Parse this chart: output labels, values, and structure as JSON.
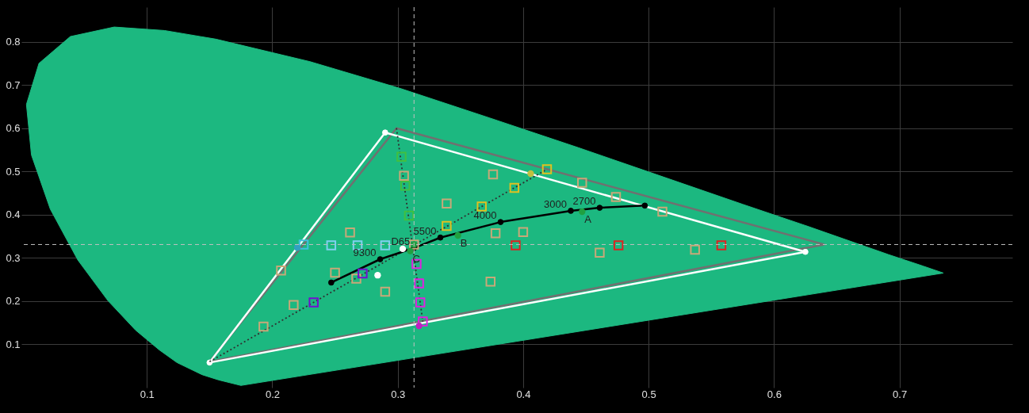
{
  "chart_data": {
    "type": "scatter",
    "xlim": [
      0,
      0.79
    ],
    "ylim": [
      0,
      0.88
    ],
    "xticks": [
      0.1,
      0.2,
      0.3,
      0.4,
      0.5,
      0.6,
      0.7
    ],
    "yticks": [
      0.1,
      0.2,
      0.3,
      0.4,
      0.5,
      0.6,
      0.7,
      0.8
    ],
    "grid": true,
    "annotations": [
      {
        "text": "9300",
        "x": 0.286,
        "y": 0.297
      },
      {
        "text": "D65",
        "x": 0.313,
        "y": 0.323
      },
      {
        "text": "5500",
        "x": 0.334,
        "y": 0.347
      },
      {
        "text": "4000",
        "x": 0.382,
        "y": 0.383
      },
      {
        "text": "3000",
        "x": 0.438,
        "y": 0.409
      },
      {
        "text": "2700",
        "x": 0.461,
        "y": 0.416
      },
      {
        "text": "A",
        "x": 0.447,
        "y": 0.407
      },
      {
        "text": "B",
        "x": 0.348,
        "y": 0.352
      },
      {
        "text": "C",
        "x": 0.31,
        "y": 0.316
      }
    ],
    "ref_lines": [
      {
        "axis": "x",
        "value": 0.313,
        "color": "#c0c0c0",
        "line_style": "dashed"
      },
      {
        "axis": "y",
        "value": 0.331,
        "color": "#c0c0c0",
        "line_style": "dashed"
      }
    ],
    "series": [
      {
        "type": "area",
        "color": "#1cb880",
        "x": [
          0.175,
          0.157,
          0.144,
          0.124,
          0.11,
          0.091,
          0.069,
          0.045,
          0.023,
          0.008,
          0.004,
          0.014,
          0.039,
          0.074,
          0.114,
          0.155,
          0.23,
          0.302,
          0.373,
          0.444,
          0.512,
          0.575,
          0.627,
          0.691,
          0.719,
          0.735
        ],
        "values": [
          0.005,
          0.018,
          0.03,
          0.058,
          0.087,
          0.133,
          0.201,
          0.295,
          0.413,
          0.538,
          0.655,
          0.75,
          0.812,
          0.834,
          0.826,
          0.806,
          0.754,
          0.692,
          0.624,
          0.555,
          0.487,
          0.424,
          0.373,
          0.308,
          0.281,
          0.265
        ]
      },
      {
        "type": "line",
        "color": "#707070",
        "x": [
          0.15,
          0.299,
          0.64
        ],
        "values": [
          0.06,
          0.6,
          0.331
        ]
      },
      {
        "type": "line",
        "color": "#707070",
        "x": [
          0.15,
          0.64
        ],
        "values": [
          0.06,
          0.331
        ]
      },
      {
        "type": "line",
        "color": "#ffffff",
        "marker": "circle",
        "x": [
          0.15,
          0.29,
          0.625
        ],
        "values": [
          0.058,
          0.59,
          0.314
        ]
      },
      {
        "type": "line",
        "color": "#ffffff",
        "x": [
          0.15,
          0.625
        ],
        "values": [
          0.058,
          0.314
        ]
      },
      {
        "type": "line",
        "color": "#303030",
        "line_style": "dotted",
        "x": [
          0.15,
          0.419
        ],
        "values": [
          0.06,
          0.505
        ]
      },
      {
        "type": "line",
        "color": "#303030",
        "line_style": "dotted",
        "x": [
          0.299,
          0.32
        ],
        "values": [
          0.6,
          0.153
        ]
      },
      {
        "type": "line",
        "color": "#000000",
        "marker": "circle",
        "x": [
          0.247,
          0.286,
          0.313,
          0.334,
          0.382,
          0.438,
          0.461,
          0.497
        ],
        "values": [
          0.243,
          0.297,
          0.323,
          0.347,
          0.383,
          0.409,
          0.416,
          0.421
        ]
      },
      {
        "marker": "square",
        "color": "#c8a878",
        "x": [
          0.305,
          0.376,
          0.447,
          0.474,
          0.511,
          0.339,
          0.378,
          0.4,
          0.461,
          0.537,
          0.262,
          0.207,
          0.25,
          0.267,
          0.29,
          0.374,
          0.313,
          0.217,
          0.193
        ],
        "values": [
          0.49,
          0.493,
          0.474,
          0.441,
          0.407,
          0.426,
          0.357,
          0.36,
          0.312,
          0.319,
          0.359,
          0.271,
          0.266,
          0.252,
          0.222,
          0.245,
          0.331,
          0.191,
          0.141
        ]
      },
      {
        "marker": "square",
        "colors": [
          "#40c040",
          "#40c040",
          "#40c040",
          "#e0c020",
          "#e0c020",
          "#e0c020",
          "#80d0f0",
          "#80d0f0",
          "#80d0f0",
          "#e02020",
          "#e02020",
          "#e02020",
          "#e020e0",
          "#e020e0",
          "#e020e0",
          "#7010d0",
          "#7010d0",
          "#40c0e0",
          "#e0c020",
          "#e020e0"
        ],
        "x": [
          0.303,
          0.306,
          0.309,
          0.393,
          0.367,
          0.339,
          0.247,
          0.268,
          0.29,
          0.394,
          0.476,
          0.558,
          0.315,
          0.317,
          0.318,
          0.233,
          0.272,
          0.225,
          0.419,
          0.32
        ],
        "values": [
          0.534,
          0.467,
          0.398,
          0.462,
          0.419,
          0.374,
          0.329,
          0.329,
          0.329,
          0.329,
          0.329,
          0.329,
          0.286,
          0.241,
          0.197,
          0.197,
          0.264,
          0.331,
          0.505,
          0.153
        ]
      },
      {
        "marker": "circle",
        "colors": [
          "#ffffff",
          "#ffffff",
          "#30a0c0",
          "#c0c040",
          "#c020c0",
          "#20a040",
          "#20a040",
          "#20a040",
          "#20a040"
        ],
        "x": [
          0.304,
          0.284,
          0.22,
          0.406,
          0.317,
          0.447,
          0.348,
          0.31,
          0.313
        ],
        "values": [
          0.321,
          0.26,
          0.324,
          0.495,
          0.143,
          0.407,
          0.352,
          0.316,
          0.331
        ]
      }
    ]
  }
}
